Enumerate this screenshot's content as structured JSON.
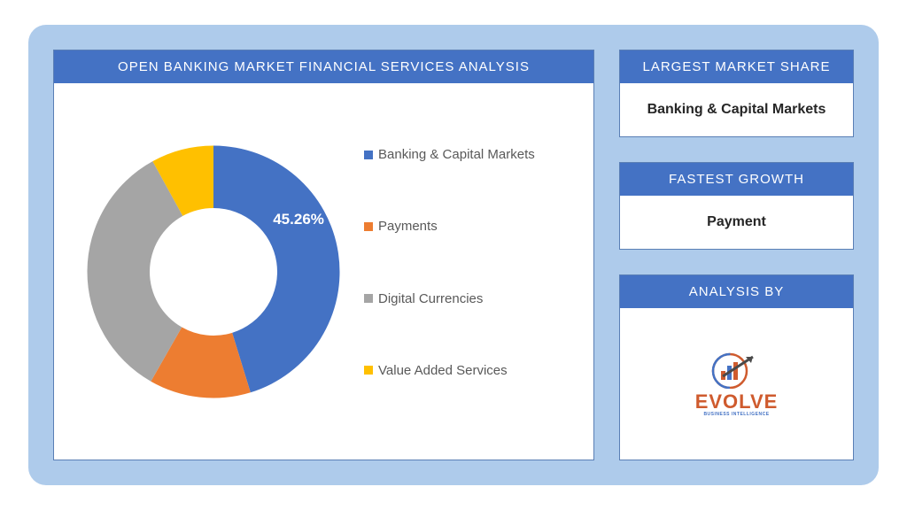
{
  "chart": {
    "title": "OPEN BANKING MARKET FINANCIAL SERVICES ANALYSIS",
    "type": "donut",
    "inner_radius_pct": 50,
    "background_color": "#ffffff",
    "panel_border_color": "#5a7fb5",
    "header_bg": "#4472c4",
    "header_text_color": "#ffffff",
    "slices": [
      {
        "label": "Banking & Capital Markets",
        "value": 45.26,
        "color": "#4472c4"
      },
      {
        "label": "Payments",
        "value": 13.0,
        "color": "#ed7d31"
      },
      {
        "label": "Digital Currencies",
        "value": 33.74,
        "color": "#a5a5a5"
      },
      {
        "label": "Value Added Services",
        "value": 8.0,
        "color": "#ffc000"
      }
    ],
    "highlight_label": "45.26%",
    "highlight_label_color": "#ffffff",
    "highlight_label_fontsize": 17
  },
  "cards": {
    "largest_share": {
      "title": "LARGEST MARKET SHARE",
      "value": "Banking & Capital Markets"
    },
    "fastest_growth": {
      "title": "FASTEST GROWTH",
      "value": "Payment"
    },
    "analysis_by": {
      "title": "ANALYSIS BY",
      "logo_text": "EVOLVE",
      "logo_sub": "BUSINESS INTELLIGENCE",
      "logo_accent_color": "#cf5b2e",
      "logo_bar_colors": [
        "#cf5b2e",
        "#4472c4",
        "#cf5b2e"
      ],
      "logo_arrow_color": "#4a4a4a"
    }
  },
  "container": {
    "background_color": "#aecbeb",
    "border_radius": 20
  },
  "legend": {
    "item_font_size": 15,
    "item_color": "#595959",
    "swatch_size": 10
  }
}
